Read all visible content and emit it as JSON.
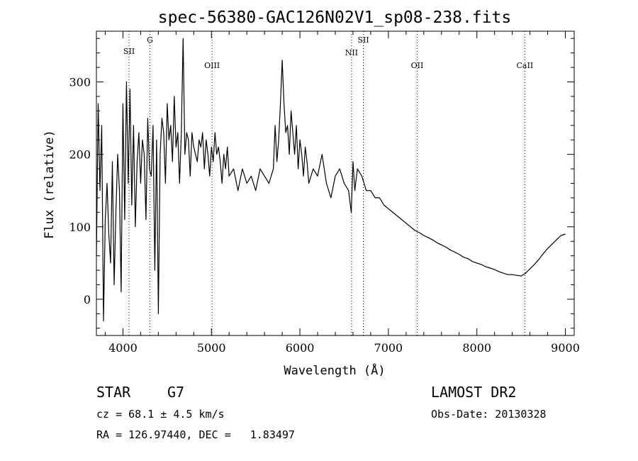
{
  "chart_data": {
    "type": "line",
    "title": "spec-56380-GAC126N02V1_sp08-238.fits",
    "xlabel": "Wavelength (Å)",
    "ylabel": "Flux (relative)",
    "xlim": [
      3700,
      9100
    ],
    "ylim": [
      -50,
      370
    ],
    "xticks": [
      "4000",
      "5000",
      "6000",
      "7000",
      "8000",
      "9000"
    ],
    "yticks": [
      "0",
      "100",
      "200",
      "300"
    ],
    "grid": false,
    "line_markers": [
      {
        "label": "SII",
        "wavelength": 4069
      },
      {
        "label": "G",
        "wavelength": 4305
      },
      {
        "label": "OIII",
        "wavelength": 5007
      },
      {
        "label": "NII",
        "wavelength": 6584
      },
      {
        "label": "SII",
        "wavelength": 6717
      },
      {
        "label": "OII",
        "wavelength": 7325
      },
      {
        "label": "CaII",
        "wavelength": 8542
      }
    ],
    "series": [
      {
        "x": [
          3700,
          3720,
          3740,
          3760,
          3780,
          3800,
          3820,
          3840,
          3860,
          3880,
          3900,
          3920,
          3940,
          3960,
          3980,
          4000,
          4020,
          4040,
          4060,
          4080,
          4100,
          4120,
          4140,
          4160,
          4180,
          4200,
          4220,
          4240,
          4260,
          4280,
          4300,
          4320,
          4340,
          4360,
          4380,
          4400,
          4420,
          4440,
          4460,
          4480,
          4500,
          4520,
          4540,
          4560,
          4580,
          4600,
          4620,
          4640,
          4660,
          4680,
          4700,
          4720,
          4740,
          4760,
          4780,
          4800,
          4820,
          4840,
          4860,
          4880,
          4900,
          4920,
          4940,
          4960,
          4980,
          5000,
          5020,
          5040,
          5060,
          5080,
          5100,
          5120,
          5140,
          5160,
          5180,
          5200,
          5250,
          5300,
          5350,
          5400,
          5450,
          5500,
          5550,
          5600,
          5650,
          5700,
          5720,
          5740,
          5760,
          5780,
          5800,
          5820,
          5840,
          5860,
          5880,
          5900,
          5920,
          5940,
          5960,
          5980,
          6000,
          6020,
          6040,
          6060,
          6080,
          6100,
          6150,
          6200,
          6250,
          6300,
          6350,
          6400,
          6450,
          6500,
          6550,
          6580,
          6600,
          6620,
          6650,
          6700,
          6750,
          6800,
          6850,
          6900,
          6950,
          7000,
          7050,
          7100,
          7150,
          7200,
          7250,
          7300,
          7350,
          7400,
          7450,
          7500,
          7550,
          7600,
          7650,
          7700,
          7750,
          7800,
          7850,
          7900,
          7950,
          8000,
          8050,
          8100,
          8150,
          8200,
          8250,
          8300,
          8350,
          8400,
          8450,
          8500,
          8550,
          8600,
          8650,
          8700,
          8750,
          8800,
          8850,
          8900,
          8950,
          9000
        ],
        "y": [
          60,
          270,
          150,
          240,
          -30,
          110,
          160,
          90,
          50,
          190,
          20,
          120,
          200,
          150,
          10,
          270,
          110,
          300,
          160,
          290,
          130,
          240,
          100,
          190,
          230,
          160,
          220,
          200,
          110,
          250,
          180,
          170,
          240,
          40,
          220,
          -20,
          200,
          250,
          230,
          160,
          270,
          220,
          240,
          190,
          280,
          210,
          230,
          160,
          230,
          360,
          200,
          230,
          220,
          170,
          230,
          210,
          200,
          190,
          220,
          210,
          230,
          180,
          220,
          200,
          170,
          210,
          190,
          230,
          200,
          210,
          190,
          160,
          200,
          180,
          210,
          170,
          180,
          150,
          180,
          160,
          170,
          150,
          180,
          170,
          160,
          180,
          240,
          190,
          220,
          270,
          330,
          270,
          230,
          240,
          200,
          260,
          230,
          200,
          240,
          180,
          220,
          200,
          170,
          210,
          190,
          160,
          180,
          170,
          200,
          160,
          140,
          170,
          180,
          160,
          150,
          120,
          190,
          150,
          180,
          170,
          150,
          150,
          140,
          140,
          130,
          125,
          120,
          115,
          110,
          105,
          100,
          95,
          92,
          88,
          85,
          82,
          78,
          75,
          72,
          68,
          65,
          62,
          58,
          56,
          52,
          50,
          48,
          45,
          43,
          41,
          38,
          36,
          34,
          34,
          33,
          32,
          36,
          42,
          48,
          55,
          63,
          70,
          76,
          82,
          88,
          90
        ]
      }
    ]
  },
  "info": {
    "object_class": "STAR",
    "subclass": "G7",
    "survey": "LAMOST DR2",
    "cz": "cz = 68.1 ± 4.5 km/s",
    "obs_date": "Obs-Date: 20130328",
    "coords": "RA = 126.97440, DEC =   1.83497"
  }
}
